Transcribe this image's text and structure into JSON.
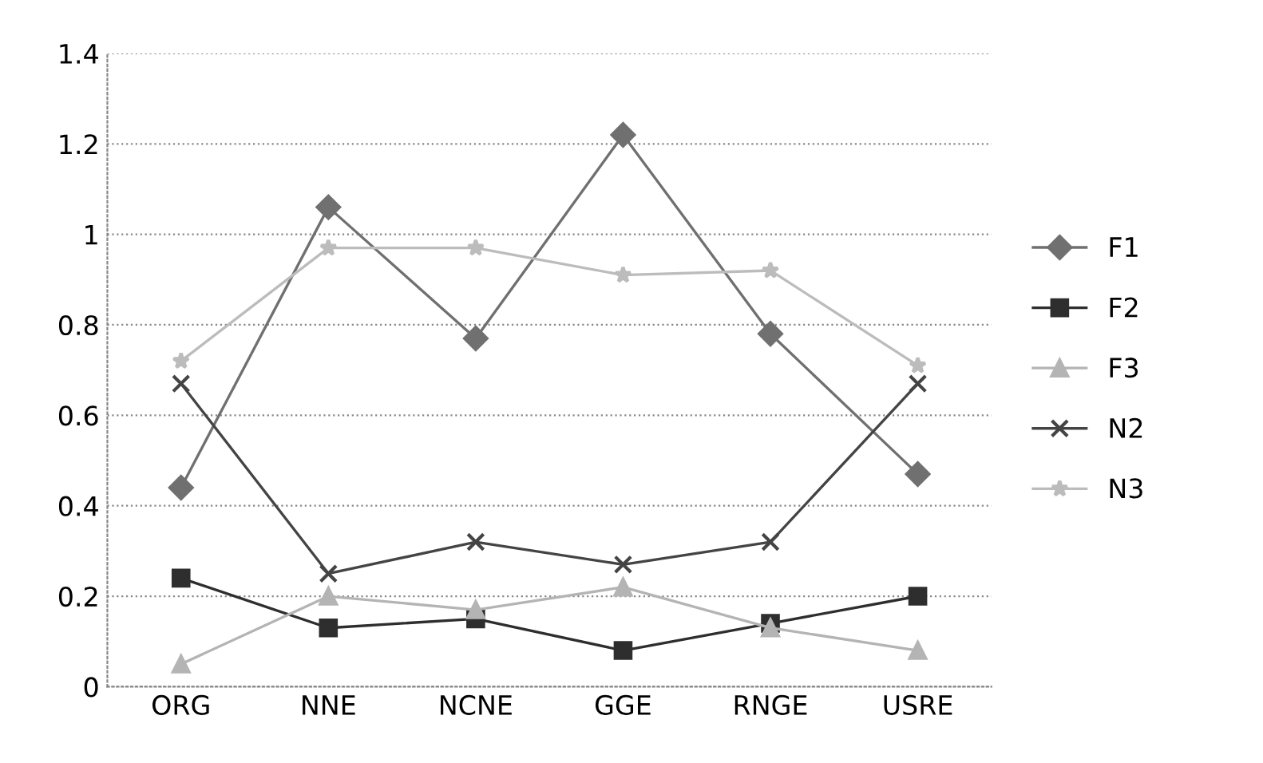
{
  "chart_data": {
    "type": "line",
    "categories": [
      "ORG",
      "NNE",
      "NCNE",
      "GGE",
      "RNGE",
      "USRE"
    ],
    "series": [
      {
        "name": "F1",
        "color": "#707070",
        "marker": "diamond",
        "values": [
          0.44,
          1.06,
          0.77,
          1.22,
          0.78,
          0.47
        ]
      },
      {
        "name": "F2",
        "color": "#2e2e2e",
        "marker": "square",
        "values": [
          0.24,
          0.13,
          0.15,
          0.08,
          0.14,
          0.2
        ]
      },
      {
        "name": "F3",
        "color": "#b4b4b4",
        "marker": "triangle",
        "values": [
          0.05,
          0.2,
          0.17,
          0.22,
          0.13,
          0.08
        ]
      },
      {
        "name": "N2",
        "color": "#444444",
        "marker": "cross",
        "values": [
          0.67,
          0.25,
          0.32,
          0.27,
          0.32,
          0.67
        ]
      },
      {
        "name": "N3",
        "color": "#bcbcbc",
        "marker": "star",
        "values": [
          0.72,
          0.97,
          0.97,
          0.91,
          0.92,
          0.71
        ]
      }
    ],
    "ylim": [
      0,
      1.4
    ],
    "yticks": [
      0,
      {
        "value": 0.2,
        "label": "0.2"
      },
      {
        "value": 0.4,
        "label": "0.4"
      },
      {
        "value": 0.6,
        "label": "0.6"
      },
      {
        "value": 0.8,
        "label": "0.8"
      },
      1,
      {
        "value": 1.2,
        "label": "1.2"
      },
      {
        "value": 1.4,
        "label": "1.4"
      }
    ],
    "grid": "y",
    "legend": "right"
  }
}
